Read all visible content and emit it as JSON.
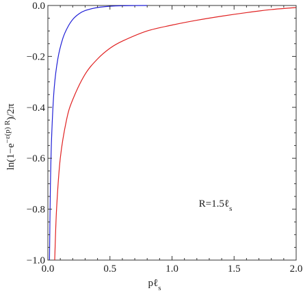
{
  "chart_data": {
    "type": "line",
    "title": "",
    "xlabel": "pℓ_s",
    "ylabel": "ln(1−e^(−ε(p)R))/2π",
    "xlim": [
      0,
      2.0
    ],
    "ylim": [
      -1.0,
      0.0
    ],
    "x_ticks": [
      {
        "value": 0.0,
        "label": "0.0"
      },
      {
        "value": 0.5,
        "label": "0.5"
      },
      {
        "value": 1.0,
        "label": "1.0"
      },
      {
        "value": 1.5,
        "label": "1.5"
      },
      {
        "value": 2.0,
        "label": "2.0"
      }
    ],
    "y_ticks": [
      {
        "value": 0.0,
        "label": "0.0"
      },
      {
        "value": -0.2,
        "label": "−0.2"
      },
      {
        "value": -0.4,
        "label": "−0.4"
      },
      {
        "value": -0.6,
        "label": "−0.6"
      },
      {
        "value": -0.8,
        "label": "−0.8"
      },
      {
        "value": -1.0,
        "label": "−1.0"
      }
    ],
    "grid": false,
    "annotation": "R=1.5ℓ_s",
    "series": [
      {
        "color": "#1f1fd6",
        "points": [
          [
            0.013,
            -1.0
          ],
          [
            0.02,
            -0.72
          ],
          [
            0.03,
            -0.52
          ],
          [
            0.05,
            -0.33
          ],
          [
            0.08,
            -0.21
          ],
          [
            0.12,
            -0.13
          ],
          [
            0.16,
            -0.085
          ],
          [
            0.2,
            -0.055
          ],
          [
            0.25,
            -0.033
          ],
          [
            0.3,
            -0.02
          ],
          [
            0.4,
            -0.008
          ],
          [
            0.5,
            -0.003
          ],
          [
            0.6,
            -0.001
          ],
          [
            0.8,
            0.0
          ]
        ]
      },
      {
        "color": "#e02020",
        "points": [
          [
            0.055,
            -1.0
          ],
          [
            0.07,
            -0.8
          ],
          [
            0.1,
            -0.6
          ],
          [
            0.15,
            -0.45
          ],
          [
            0.2,
            -0.37
          ],
          [
            0.3,
            -0.27
          ],
          [
            0.4,
            -0.21
          ],
          [
            0.5,
            -0.168
          ],
          [
            0.6,
            -0.14
          ],
          [
            0.8,
            -0.1
          ],
          [
            1.0,
            -0.077
          ],
          [
            1.2,
            -0.058
          ],
          [
            1.4,
            -0.042
          ],
          [
            1.6,
            -0.028
          ],
          [
            1.8,
            -0.016
          ],
          [
            2.0,
            -0.008
          ]
        ]
      }
    ]
  }
}
